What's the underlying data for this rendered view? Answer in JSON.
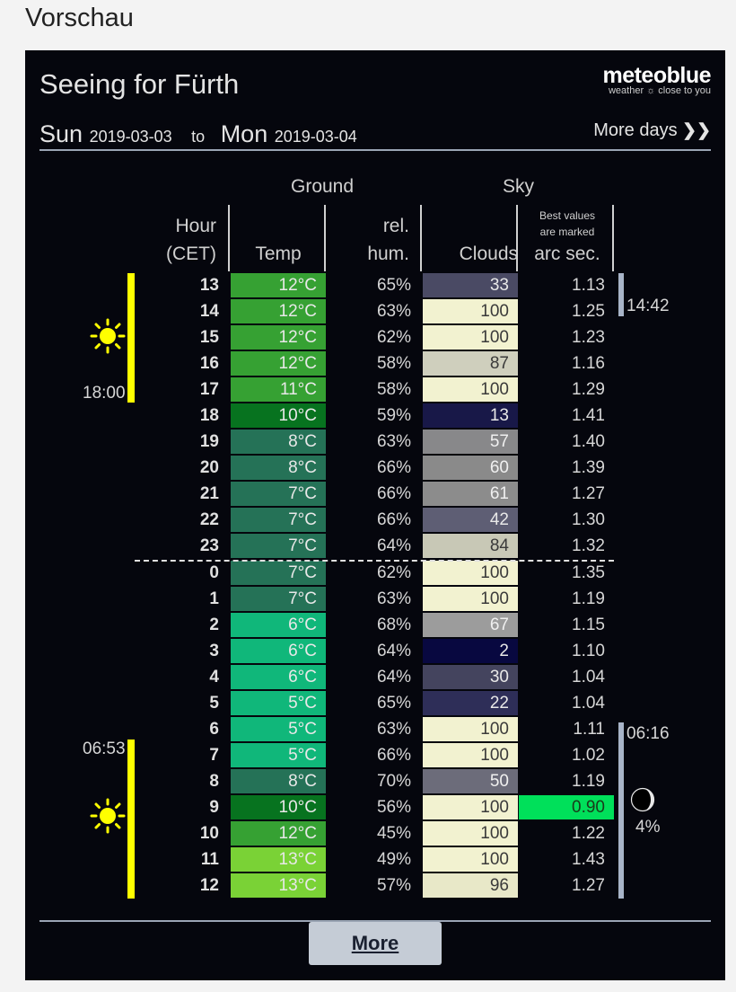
{
  "page_title": "Vorschau",
  "widget": {
    "title": "Seeing for Fürth",
    "logo": {
      "main": "meteoblue",
      "sub": "weather ☼ close to you"
    },
    "date_from": {
      "day": "Sun",
      "date": "2019-03-03"
    },
    "date_sep": "to",
    "date_to": {
      "day": "Mon",
      "date": "2019-03-04"
    },
    "more_days": "More days",
    "more_days_icon": "double-chevron-right-icon",
    "headers": {
      "group_ground": "Ground",
      "group_sky": "Sky",
      "hour_l1": "Hour",
      "hour_l2": "(CET)",
      "temp": "Temp",
      "hum_l1": "rel.",
      "hum_l2": "hum.",
      "clouds": "Clouds",
      "best_l1": "Best values",
      "best_l2": "are marked",
      "seeing": "arc sec."
    },
    "sunset": "18:00",
    "sunrise": "06:53",
    "moonset": "14:42",
    "moonrise": "06:16",
    "moon_illumination": "4%",
    "rows": [
      {
        "hour": "13",
        "temp": "12°C",
        "temp_color": "#36a133",
        "hum": "65%",
        "clouds": "33",
        "cloud_color": "#4a4a64",
        "cloud_text": "#e8e8e8",
        "seeing": "1.13"
      },
      {
        "hour": "14",
        "temp": "12°C",
        "temp_color": "#36a133",
        "hum": "63%",
        "clouds": "100",
        "cloud_color": "#f2f2d0",
        "cloud_text": "#3a3a3a",
        "seeing": "1.25"
      },
      {
        "hour": "15",
        "temp": "12°C",
        "temp_color": "#36a133",
        "hum": "62%",
        "clouds": "100",
        "cloud_color": "#f2f2d0",
        "cloud_text": "#3a3a3a",
        "seeing": "1.23"
      },
      {
        "hour": "16",
        "temp": "12°C",
        "temp_color": "#36a133",
        "hum": "58%",
        "clouds": "87",
        "cloud_color": "#cfcfbd",
        "cloud_text": "#3a3a3a",
        "seeing": "1.16"
      },
      {
        "hour": "17",
        "temp": "11°C",
        "temp_color": "#36a133",
        "hum": "58%",
        "clouds": "100",
        "cloud_color": "#f2f2d0",
        "cloud_text": "#3a3a3a",
        "seeing": "1.29"
      },
      {
        "hour": "18",
        "temp": "10°C",
        "temp_color": "#07731f",
        "hum": "59%",
        "clouds": "13",
        "cloud_color": "#181848",
        "cloud_text": "#e8e8e8",
        "seeing": "1.41"
      },
      {
        "hour": "19",
        "temp": "8°C",
        "temp_color": "#257257",
        "hum": "63%",
        "clouds": "57",
        "cloud_color": "#88888a",
        "cloud_text": "#f0f0f0",
        "seeing": "1.40"
      },
      {
        "hour": "20",
        "temp": "8°C",
        "temp_color": "#257257",
        "hum": "66%",
        "clouds": "60",
        "cloud_color": "#8a8a8a",
        "cloud_text": "#f0f0f0",
        "seeing": "1.39"
      },
      {
        "hour": "21",
        "temp": "7°C",
        "temp_color": "#257257",
        "hum": "66%",
        "clouds": "61",
        "cloud_color": "#8c8c8c",
        "cloud_text": "#f0f0f0",
        "seeing": "1.27"
      },
      {
        "hour": "22",
        "temp": "7°C",
        "temp_color": "#257257",
        "hum": "66%",
        "clouds": "42",
        "cloud_color": "#5e5e74",
        "cloud_text": "#e8e8e8",
        "seeing": "1.30"
      },
      {
        "hour": "23",
        "temp": "7°C",
        "temp_color": "#257257",
        "hum": "64%",
        "clouds": "84",
        "cloud_color": "#c8c8b6",
        "cloud_text": "#3a3a3a",
        "seeing": "1.32"
      },
      {
        "hour": "0",
        "temp": "7°C",
        "temp_color": "#257257",
        "hum": "62%",
        "clouds": "100",
        "cloud_color": "#f2f2d0",
        "cloud_text": "#3a3a3a",
        "seeing": "1.35"
      },
      {
        "hour": "1",
        "temp": "7°C",
        "temp_color": "#257257",
        "hum": "63%",
        "clouds": "100",
        "cloud_color": "#f2f2d0",
        "cloud_text": "#3a3a3a",
        "seeing": "1.19"
      },
      {
        "hour": "2",
        "temp": "6°C",
        "temp_color": "#10b77a",
        "hum": "68%",
        "clouds": "67",
        "cloud_color": "#9c9c9c",
        "cloud_text": "#f0f0f0",
        "seeing": "1.15"
      },
      {
        "hour": "3",
        "temp": "6°C",
        "temp_color": "#10b77a",
        "hum": "64%",
        "clouds": "2",
        "cloud_color": "#080840",
        "cloud_text": "#e8e8e8",
        "seeing": "1.10"
      },
      {
        "hour": "4",
        "temp": "6°C",
        "temp_color": "#10b77a",
        "hum": "64%",
        "clouds": "30",
        "cloud_color": "#44445e",
        "cloud_text": "#e8e8e8",
        "seeing": "1.04"
      },
      {
        "hour": "5",
        "temp": "5°C",
        "temp_color": "#10b77a",
        "hum": "65%",
        "clouds": "22",
        "cloud_color": "#2e2e58",
        "cloud_text": "#e8e8e8",
        "seeing": "1.04"
      },
      {
        "hour": "6",
        "temp": "5°C",
        "temp_color": "#10b77a",
        "hum": "63%",
        "clouds": "100",
        "cloud_color": "#f2f2d0",
        "cloud_text": "#3a3a3a",
        "seeing": "1.11"
      },
      {
        "hour": "7",
        "temp": "5°C",
        "temp_color": "#10b77a",
        "hum": "66%",
        "clouds": "100",
        "cloud_color": "#f2f2d0",
        "cloud_text": "#3a3a3a",
        "seeing": "1.02"
      },
      {
        "hour": "8",
        "temp": "8°C",
        "temp_color": "#257257",
        "hum": "70%",
        "clouds": "50",
        "cloud_color": "#6c6c7a",
        "cloud_text": "#f0f0f0",
        "seeing": "1.19"
      },
      {
        "hour": "9",
        "temp": "10°C",
        "temp_color": "#07731f",
        "hum": "56%",
        "clouds": "100",
        "cloud_color": "#f2f2d0",
        "cloud_text": "#3a3a3a",
        "seeing": "0.90",
        "best": true
      },
      {
        "hour": "10",
        "temp": "12°C",
        "temp_color": "#36a133",
        "hum": "45%",
        "clouds": "100",
        "cloud_color": "#f2f2d0",
        "cloud_text": "#3a3a3a",
        "seeing": "1.22"
      },
      {
        "hour": "11",
        "temp": "13°C",
        "temp_color": "#7ad236",
        "hum": "49%",
        "clouds": "100",
        "cloud_color": "#f2f2d0",
        "cloud_text": "#3a3a3a",
        "seeing": "1.43"
      },
      {
        "hour": "12",
        "temp": "13°C",
        "temp_color": "#7ad236",
        "hum": "57%",
        "clouds": "96",
        "cloud_color": "#e8e8c8",
        "cloud_text": "#3a3a3a",
        "seeing": "1.27"
      }
    ],
    "best_color": "#00e05a",
    "more_button": "More"
  }
}
